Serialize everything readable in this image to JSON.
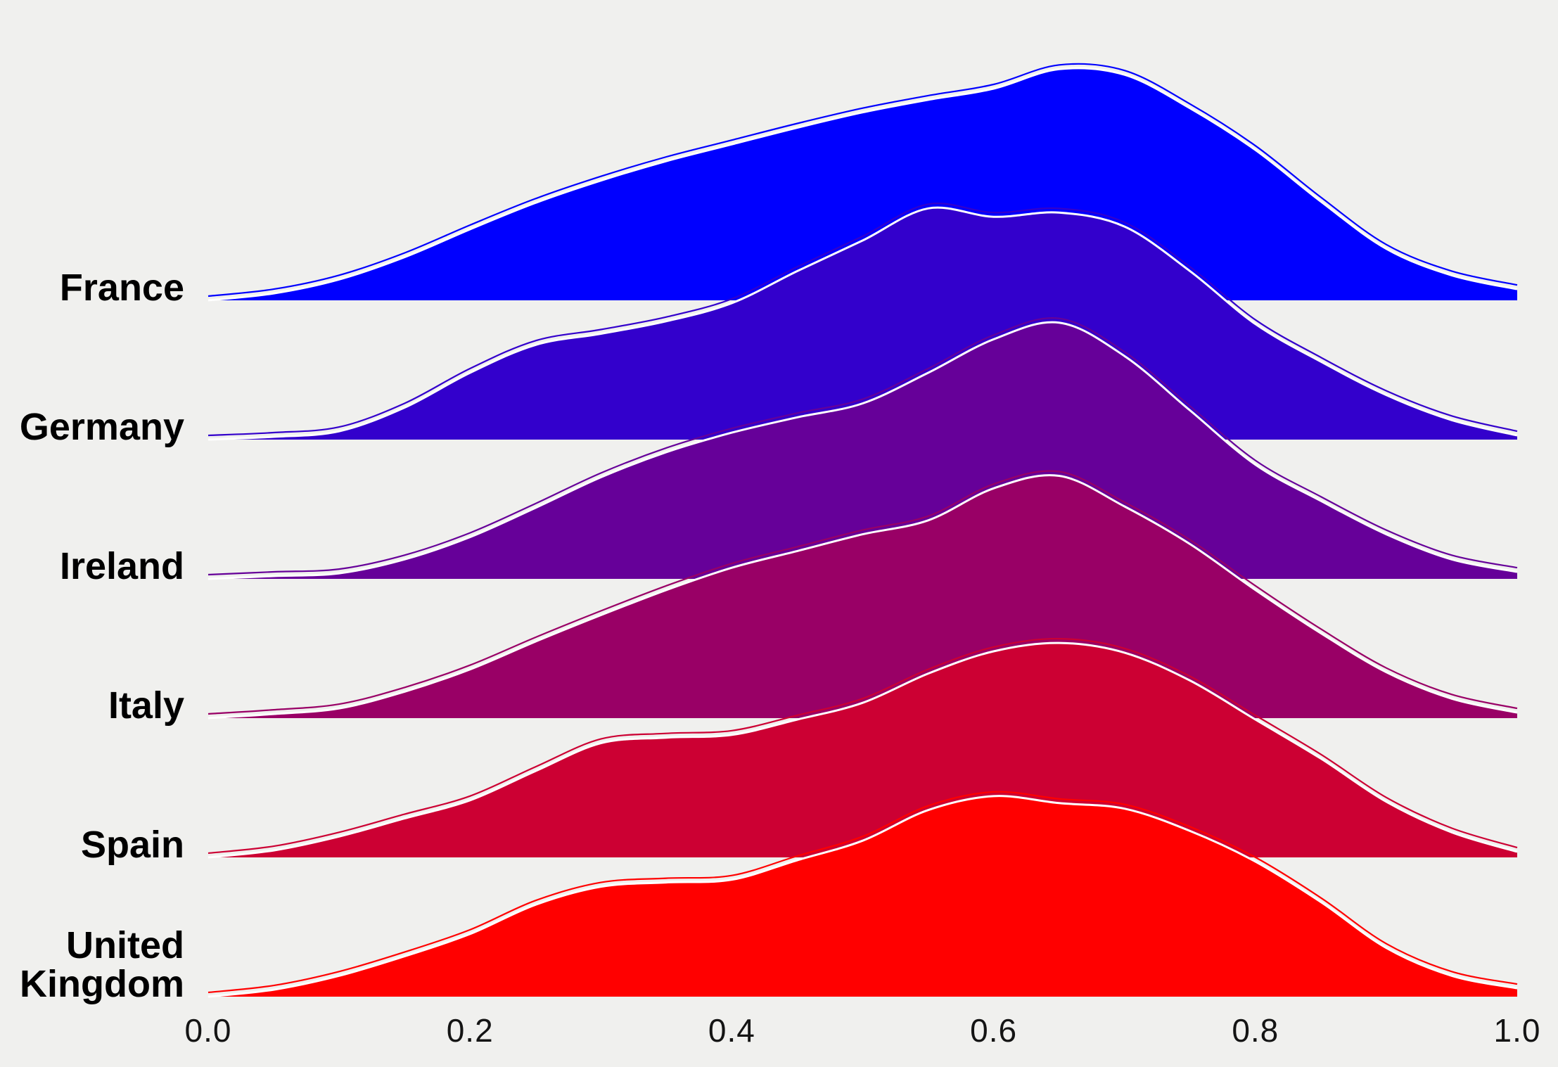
{
  "figure": {
    "background": "#f0f0ee",
    "curve_outline_color": "#ffffff"
  },
  "chart_data": {
    "type": "area",
    "subtype": "ridgeline-density",
    "title": "",
    "xlabel": "",
    "ylabel": "",
    "grid": false,
    "legend": "none",
    "x_axis": {
      "range": [
        0,
        1
      ],
      "tick_values": [
        0.0,
        0.2,
        0.4,
        0.6,
        0.8,
        1.0
      ],
      "tick_labels": [
        "0.0",
        "0.2",
        "0.4",
        "0.6",
        "0.8",
        "1.0"
      ]
    },
    "x": [
      0,
      0.05,
      0.1,
      0.15,
      0.2,
      0.25,
      0.3,
      0.35,
      0.4,
      0.45,
      0.5,
      0.55,
      0.6,
      0.65,
      0.7,
      0.75,
      0.8,
      0.85,
      0.9,
      0.95,
      1.0
    ],
    "value_unit": "relative density (1.0 = vertical spacing between ridge baselines)",
    "series": [
      {
        "label": "France",
        "color": "#0000ff",
        "values": [
          0,
          0.05,
          0.15,
          0.31,
          0.51,
          0.7,
          0.86,
          1.0,
          1.12,
          1.24,
          1.35,
          1.44,
          1.52,
          1.66,
          1.62,
          1.38,
          1.08,
          0.71,
          0.37,
          0.18,
          0.08
        ]
      },
      {
        "label": "Germany",
        "color": "#3300cc",
        "values": [
          0,
          0.02,
          0.06,
          0.23,
          0.48,
          0.68,
          0.76,
          0.85,
          0.98,
          1.21,
          1.43,
          1.66,
          1.6,
          1.63,
          1.53,
          1.21,
          0.83,
          0.56,
          0.32,
          0.14,
          0.03
        ]
      },
      {
        "label": "Ireland",
        "color": "#660099",
        "values": [
          0,
          0.02,
          0.04,
          0.14,
          0.3,
          0.51,
          0.73,
          0.91,
          1.05,
          1.16,
          1.26,
          1.48,
          1.72,
          1.84,
          1.6,
          1.21,
          0.82,
          0.56,
          0.32,
          0.14,
          0.05
        ]
      },
      {
        "label": "Italy",
        "color": "#990066",
        "values": [
          0,
          0.03,
          0.07,
          0.19,
          0.35,
          0.55,
          0.74,
          0.92,
          1.08,
          1.2,
          1.32,
          1.42,
          1.65,
          1.74,
          1.52,
          1.25,
          0.92,
          0.61,
          0.33,
          0.14,
          0.04
        ]
      },
      {
        "label": "Spain",
        "color": "#cc0033",
        "values": [
          0,
          0.05,
          0.15,
          0.28,
          0.41,
          0.62,
          0.82,
          0.86,
          0.88,
          0.99,
          1.11,
          1.32,
          1.48,
          1.54,
          1.47,
          1.27,
          0.99,
          0.71,
          0.4,
          0.18,
          0.04
        ]
      },
      {
        "label": "United Kingdom",
        "color": "#ff0000",
        "values": [
          0,
          0.05,
          0.15,
          0.29,
          0.45,
          0.66,
          0.79,
          0.82,
          0.84,
          0.98,
          1.12,
          1.34,
          1.44,
          1.39,
          1.35,
          1.19,
          0.97,
          0.68,
          0.35,
          0.15,
          0.06
        ]
      }
    ]
  }
}
